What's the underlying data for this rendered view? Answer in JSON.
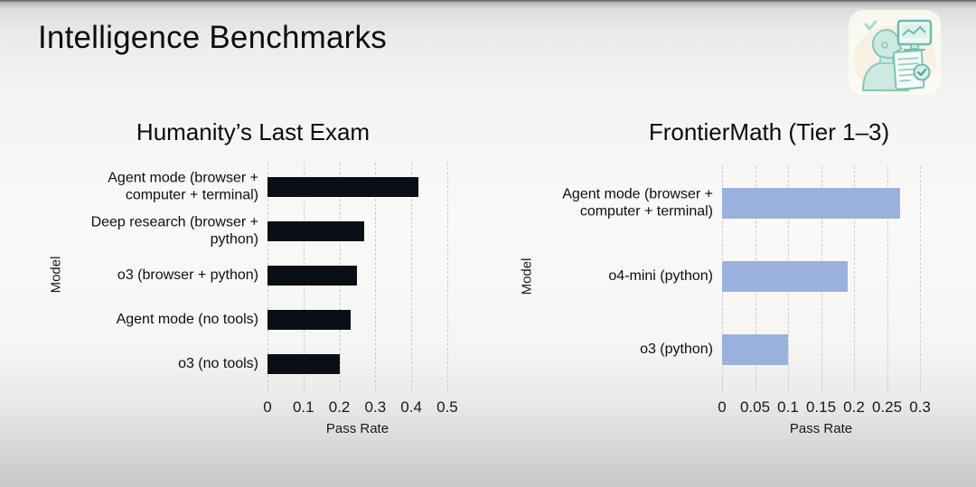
{
  "header": {
    "title": "Intelligence Benchmarks"
  },
  "icons": {
    "corner_illustration": "person-reviewing-report-with-monitor"
  },
  "colors": {
    "background_top": "#ebecea",
    "background_middle": "#f9f9f7",
    "background_bottom": "#c6c9c6",
    "text": "#111111",
    "gridline": "#cbcbcb",
    "hle_bar": "#0a0f16",
    "frontiermath_bar": "#9ab1de"
  },
  "chart_data": [
    {
      "type": "bar",
      "orientation": "horizontal",
      "title": "Humanity’s Last Exam",
      "ylabel": "Model",
      "xlabel": "Pass Rate",
      "categories": [
        "Agent mode (browser +\ncomputer + terminal)",
        "Deep research (browser +\npython)",
        "o3 (browser + python)",
        "Agent mode (no tools)",
        "o3 (no tools)"
      ],
      "values": [
        0.42,
        0.27,
        0.25,
        0.23,
        0.2
      ],
      "xlim": [
        0,
        0.553
      ],
      "xticks": [
        0,
        0.1,
        0.2,
        0.3,
        0.4,
        0.5
      ],
      "xtick_labels": [
        "0",
        "0.1",
        "0.2",
        "0.3",
        "0.4",
        "0.5"
      ],
      "grid": "vertical-dashed",
      "legend": "none",
      "bar_color": "#0a0f16"
    },
    {
      "type": "bar",
      "orientation": "horizontal",
      "title": "FrontierMath (Tier 1–3)",
      "ylabel": "Model",
      "xlabel": "Pass Rate",
      "categories": [
        "Agent mode (browser +\ncomputer + terminal)",
        "o4-mini (python)",
        "o3 (python)"
      ],
      "values": [
        0.27,
        0.19,
        0.1
      ],
      "xlim": [
        0,
        0.326
      ],
      "xticks": [
        0,
        0.05,
        0.1,
        0.15,
        0.2,
        0.25,
        0.3
      ],
      "xtick_labels": [
        "0",
        "0.05",
        "0.1",
        "0.15",
        "0.2",
        "0.25",
        "0.3"
      ],
      "grid": "vertical-dashed",
      "legend": "none",
      "bar_color": "#9ab1de"
    }
  ]
}
